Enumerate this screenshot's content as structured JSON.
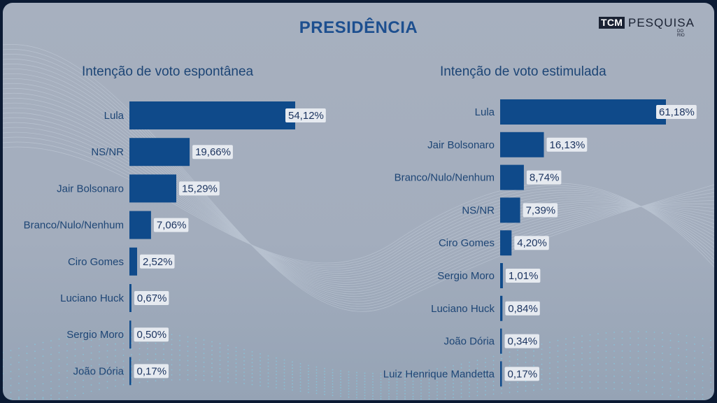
{
  "title": "PRESIDÊNCIA",
  "logo": {
    "box_text": "TCM",
    "text": "PESQUISA",
    "sub": "DO RIO"
  },
  "colors": {
    "bar": "#0f4a8a",
    "title": "#1d4f8f",
    "label": "#1d4575",
    "value_bg": "#e6eaf0"
  },
  "chart_data": [
    {
      "type": "bar",
      "orientation": "horizontal",
      "title": "Intenção de voto espontânea",
      "categories": [
        "Lula",
        "NS/NR",
        "Jair Bolsonaro",
        "Branco/Nulo/Nenhum",
        "Ciro Gomes",
        "Luciano Huck",
        "Sergio Moro",
        "João Dória"
      ],
      "values": [
        54.12,
        19.66,
        15.29,
        7.06,
        2.52,
        0.67,
        0.5,
        0.17
      ],
      "value_labels": [
        "54,12%",
        "19,66%",
        "15,29%",
        "7,06%",
        "2,52%",
        "0,67%",
        "0,50%",
        "0,17%"
      ],
      "xlim": [
        0,
        54.12
      ]
    },
    {
      "type": "bar",
      "orientation": "horizontal",
      "title": "Intenção de voto estimulada",
      "categories": [
        "Lula",
        "Jair Bolsonaro",
        "Branco/Nulo/Nenhum",
        "NS/NR",
        "Ciro Gomes",
        "Sergio Moro",
        "Luciano Huck",
        "João Dória",
        "Luiz Henrique Mandetta"
      ],
      "values": [
        61.18,
        16.13,
        8.74,
        7.39,
        4.2,
        1.01,
        0.84,
        0.34,
        0.17
      ],
      "value_labels": [
        "61,18%",
        "16,13%",
        "8,74%",
        "7,39%",
        "4,20%",
        "1,01%",
        "0,84%",
        "0,34%",
        "0,17%"
      ],
      "xlim": [
        0,
        61.18
      ]
    }
  ]
}
